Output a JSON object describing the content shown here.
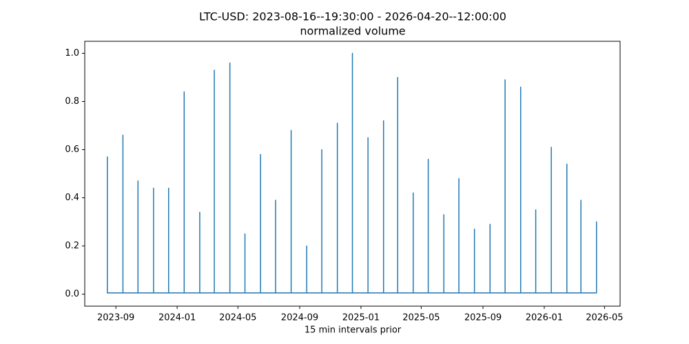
{
  "chart_data": {
    "type": "line",
    "title": "LTC-USD: 2023-08-16--19:30:00 - 2026-04-20--12:00:00",
    "subtitle": "normalized volume",
    "xlabel": "15 min intervals prior",
    "color": "#1f77b4",
    "x": [
      "2023-08",
      "2023-08",
      "2023-08",
      "2023-09",
      "2023-09",
      "2023-09",
      "2023-10",
      "2023-10",
      "2023-10",
      "2023-11",
      "2023-11",
      "2023-11",
      "2023-12",
      "2023-12",
      "2023-12",
      "2024-01",
      "2024-01",
      "2024-01",
      "2024-02",
      "2024-02",
      "2024-02",
      "2024-03",
      "2024-03",
      "2024-03",
      "2024-04",
      "2024-04",
      "2024-04",
      "2024-05",
      "2024-05",
      "2024-05",
      "2024-06",
      "2024-06",
      "2024-06",
      "2024-07",
      "2024-07",
      "2024-07",
      "2024-08",
      "2024-08",
      "2024-08",
      "2024-09",
      "2024-09",
      "2024-09",
      "2024-10",
      "2024-10",
      "2024-10",
      "2024-11",
      "2024-11",
      "2024-11",
      "2024-12",
      "2024-12",
      "2024-12",
      "2025-01",
      "2025-01",
      "2025-01",
      "2025-02",
      "2025-02",
      "2025-02",
      "2025-03",
      "2025-03",
      "2025-03",
      "2025-04",
      "2025-04",
      "2025-04",
      "2025-05",
      "2025-05",
      "2025-05",
      "2025-06",
      "2025-06",
      "2025-06",
      "2025-07",
      "2025-07",
      "2025-07",
      "2025-08",
      "2025-08",
      "2025-08",
      "2025-09",
      "2025-09",
      "2025-09",
      "2025-10",
      "2025-10",
      "2025-10",
      "2025-11",
      "2025-11",
      "2025-11",
      "2025-12",
      "2025-12",
      "2025-12",
      "2026-01",
      "2026-01",
      "2026-01",
      "2026-02",
      "2026-02",
      "2026-02",
      "2026-03",
      "2026-03",
      "2026-03",
      "2026-04",
      "2026-04",
      "2026-04"
    ],
    "values": [
      0.005,
      0.57,
      0.005,
      0.005,
      0.66,
      0.005,
      0.005,
      0.47,
      0.005,
      0.005,
      0.44,
      0.005,
      0.005,
      0.44,
      0.005,
      0.005,
      0.84,
      0.005,
      0.005,
      0.34,
      0.005,
      0.005,
      0.93,
      0.005,
      0.005,
      0.96,
      0.005,
      0.005,
      0.25,
      0.005,
      0.005,
      0.58,
      0.005,
      0.005,
      0.39,
      0.005,
      0.005,
      0.68,
      0.005,
      0.005,
      0.2,
      0.005,
      0.005,
      0.6,
      0.005,
      0.005,
      0.71,
      0.005,
      0.005,
      1.0,
      0.005,
      0.005,
      0.65,
      0.005,
      0.005,
      0.72,
      0.005,
      0.005,
      0.9,
      0.005,
      0.005,
      0.42,
      0.005,
      0.005,
      0.56,
      0.005,
      0.005,
      0.33,
      0.005,
      0.005,
      0.48,
      0.005,
      0.005,
      0.27,
      0.005,
      0.005,
      0.29,
      0.005,
      0.005,
      0.89,
      0.005,
      0.005,
      0.86,
      0.005,
      0.005,
      0.35,
      0.005,
      0.005,
      0.61,
      0.005,
      0.005,
      0.54,
      0.005,
      0.005,
      0.39,
      0.005,
      0.005,
      0.3,
      0.005
    ],
    "xlim": [
      "2023-07",
      "2026-06"
    ],
    "xticks": [
      "2023-09",
      "2024-01",
      "2024-05",
      "2024-09",
      "2025-01",
      "2025-05",
      "2025-09",
      "2026-01",
      "2026-05"
    ],
    "ylim": [
      -0.05,
      1.05
    ],
    "yticks": [
      {
        "value": 0,
        "label": "0.0"
      },
      0.2,
      0.4,
      0.6,
      0.8,
      {
        "value": 1,
        "label": "1.0"
      }
    ]
  }
}
